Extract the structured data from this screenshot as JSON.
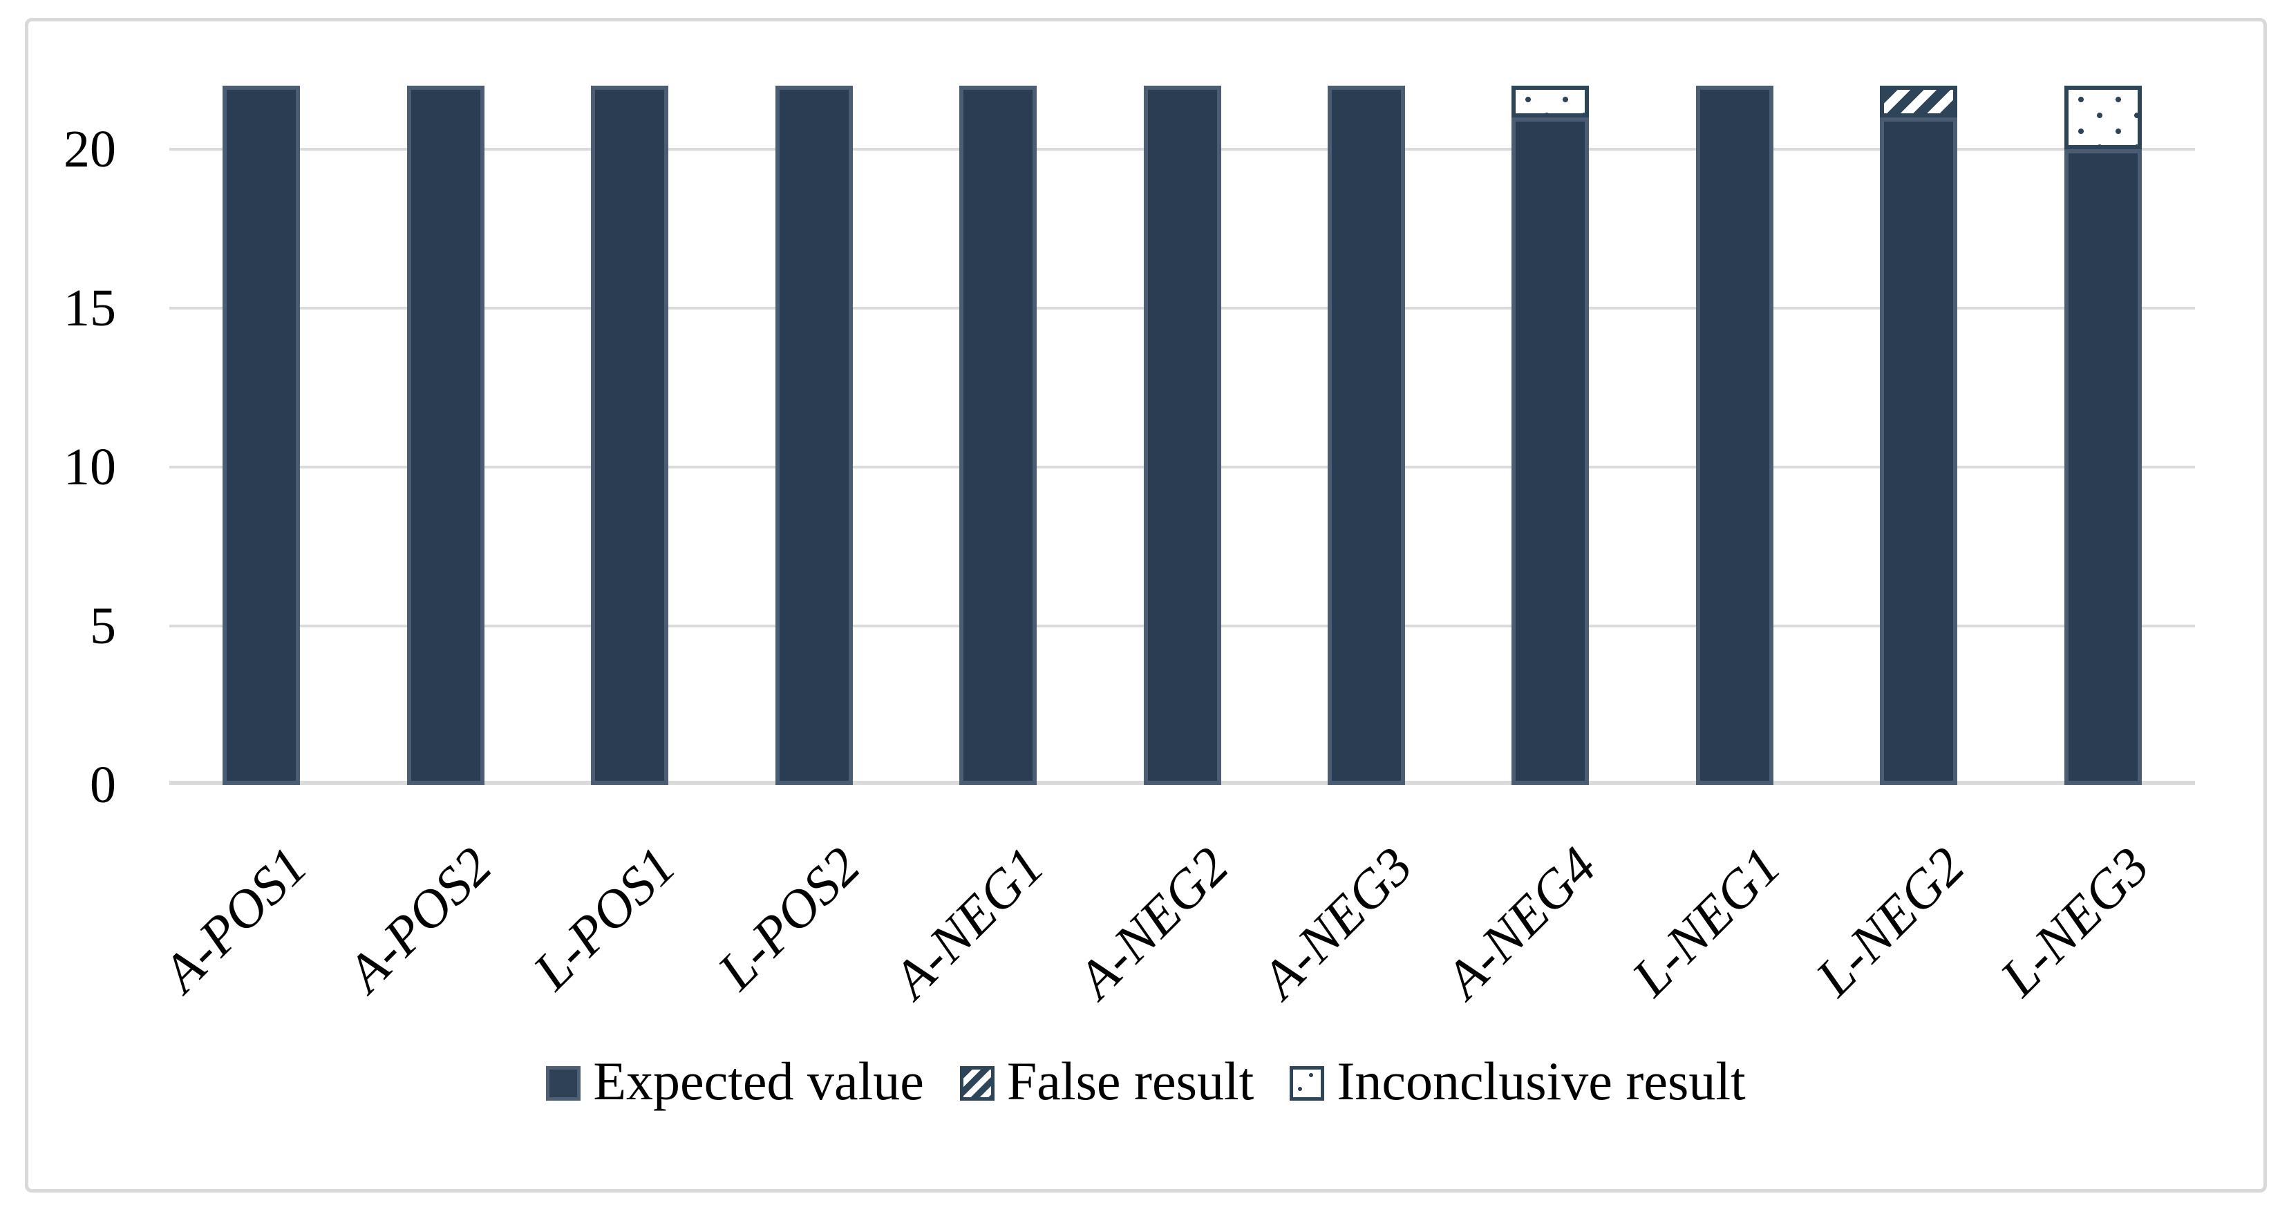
{
  "figure": {
    "background_color": "#ffffff",
    "frame_color": "#d9d9d9"
  },
  "chart_data": {
    "type": "bar",
    "stacked": true,
    "title": "",
    "xlabel": "",
    "ylabel": "",
    "categories": [
      "A-POS1",
      "A-POS2",
      "L-POS1",
      "L-POS2",
      "A-NEG1",
      "A-NEG2",
      "A-NEG3",
      "A-NEG4",
      "L-NEG1",
      "L-NEG2",
      "L-NEG3"
    ],
    "series": [
      {
        "name": "Expected value",
        "pattern": "solid",
        "values": [
          22,
          22,
          22,
          22,
          22,
          22,
          22,
          21,
          22,
          21,
          20
        ]
      },
      {
        "name": "False result",
        "pattern": "hatch",
        "values": [
          0,
          0,
          0,
          0,
          0,
          0,
          0,
          0,
          0,
          1,
          0
        ]
      },
      {
        "name": "Inconclusive result",
        "pattern": "dots",
        "values": [
          0,
          0,
          0,
          0,
          0,
          0,
          0,
          1,
          0,
          0,
          2
        ]
      }
    ],
    "yticks": [
      0,
      5,
      10,
      15,
      20
    ],
    "ylim": [
      0,
      22
    ],
    "grid": "horizontal",
    "legend_position": "bottom",
    "colors": {
      "bar_fill": "#2a3d52",
      "bar_border": "#4a5d73",
      "pattern_dark": "#2e4459",
      "pattern_light": "#ffffff",
      "gridline": "#dadada",
      "text": "#000000"
    }
  }
}
